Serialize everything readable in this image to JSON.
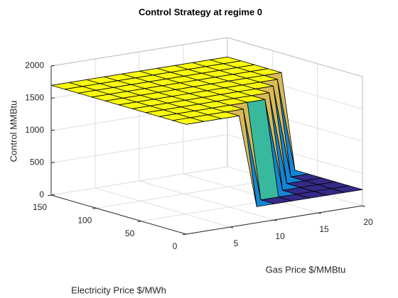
{
  "chart_data": {
    "type": "surface",
    "title": "Control Strategy at regime 0",
    "xlabel": "Gas Price $/MMBtu",
    "ylabel": "Electricity Price $/MWh",
    "zlabel": "Control MMBtu",
    "x": [
      0,
      2,
      4,
      6,
      8,
      10,
      12,
      14,
      16,
      18,
      20
    ],
    "y": [
      0,
      15,
      30,
      45,
      60,
      75,
      90,
      105,
      120,
      135,
      150
    ],
    "z": [
      [
        1700,
        1700,
        1700,
        1700,
        250,
        250,
        250,
        250,
        250,
        250,
        250
      ],
      [
        1700,
        1700,
        1700,
        1700,
        1700,
        250,
        250,
        250,
        250,
        250,
        250
      ],
      [
        1700,
        1700,
        1700,
        1700,
        1700,
        1700,
        1700,
        250,
        250,
        250,
        250
      ],
      [
        1700,
        1700,
        1700,
        1700,
        1700,
        1700,
        1700,
        1700,
        250,
        250,
        250
      ],
      [
        1700,
        1700,
        1700,
        1700,
        1700,
        1700,
        1700,
        1700,
        1700,
        250,
        250
      ],
      [
        1700,
        1700,
        1700,
        1700,
        1700,
        1700,
        1700,
        1700,
        1700,
        1700,
        250
      ],
      [
        1700,
        1700,
        1700,
        1700,
        1700,
        1700,
        1700,
        1700,
        1700,
        1700,
        1700
      ],
      [
        1700,
        1700,
        1700,
        1700,
        1700,
        1700,
        1700,
        1700,
        1700,
        1700,
        1700
      ],
      [
        1700,
        1700,
        1700,
        1700,
        1700,
        1700,
        1700,
        1700,
        1700,
        1700,
        1700
      ],
      [
        1700,
        1700,
        1700,
        1700,
        1700,
        1700,
        1700,
        1700,
        1700,
        1700,
        1700
      ],
      [
        1700,
        1700,
        1700,
        1700,
        1700,
        1700,
        1700,
        1700,
        1700,
        1700,
        1700
      ]
    ],
    "xlim": [
      0,
      20
    ],
    "xticks": [
      5,
      10,
      15,
      20
    ],
    "ylim": [
      0,
      150
    ],
    "yticks": [
      0,
      50,
      100,
      150
    ],
    "zlim": [
      0,
      2000
    ],
    "zticks": [
      0,
      500,
      1000,
      1500,
      2000
    ],
    "grid": true,
    "colormap": [
      "#352a87",
      "#0363e1",
      "#1485d4",
      "#06a7c6",
      "#38b99e",
      "#92bf73",
      "#d9ba56",
      "#fcce2e",
      "#f9fb0e"
    ]
  }
}
